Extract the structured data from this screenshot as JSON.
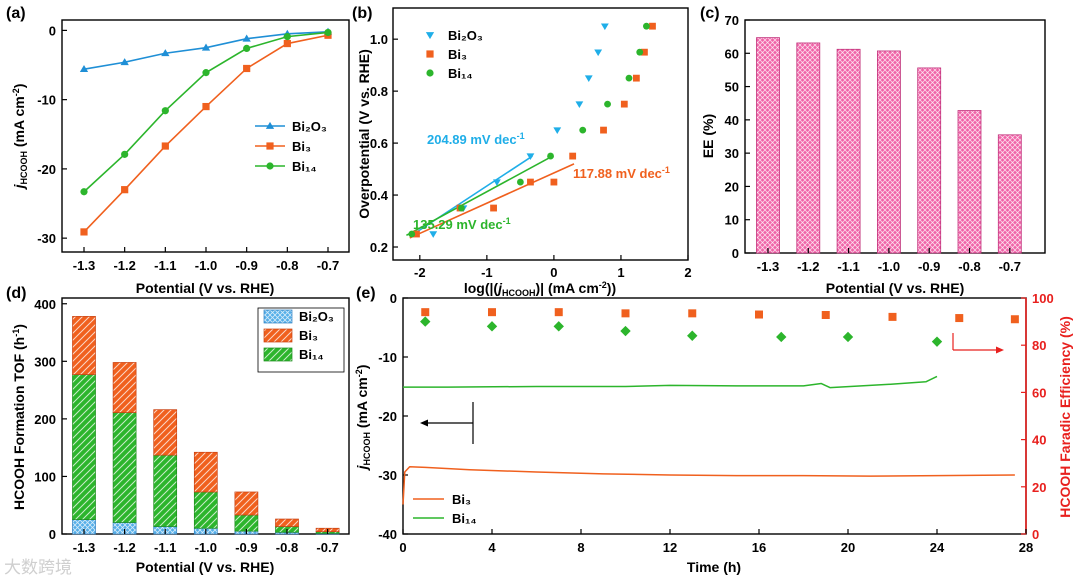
{
  "watermark": "大数跨境",
  "chart_data": [
    {
      "panel": "(a)",
      "type": "line",
      "x": [
        -1.3,
        -1.2,
        -1.1,
        -1.0,
        -0.9,
        -0.8,
        -0.7
      ],
      "xticks": [
        "-1.3",
        "-1.2",
        "-1.1",
        "-1.0",
        "-0.9",
        "-0.8",
        "-0.7"
      ],
      "yticks": [
        "0",
        "-10",
        "-20",
        "-30"
      ],
      "xlabel": "Potential (V vs. RHE)",
      "ylabel_main": "j",
      "ylabel_sub": "HCOOH",
      "ylabel_unit": " (mA cm",
      "ylabel_sup": "-2",
      "ylabel_end": ")",
      "ylim": [
        -32,
        1.5
      ],
      "legend": "right",
      "series": [
        {
          "name": "Bi₂O₃",
          "color": "#1f8fd6",
          "marker": "triangle",
          "values": [
            -5.6,
            -4.6,
            -3.3,
            -2.5,
            -1.2,
            -0.5,
            -0.2
          ]
        },
        {
          "name": "Bi₃",
          "color": "#f0601e",
          "marker": "square",
          "values": [
            -29.1,
            -23.0,
            -16.7,
            -11.0,
            -5.5,
            -1.9,
            -0.7
          ]
        },
        {
          "name": "Bi₁₄",
          "color": "#2cb52c",
          "marker": "circle",
          "values": [
            -23.3,
            -17.9,
            -11.6,
            -6.1,
            -2.6,
            -0.9,
            -0.3
          ]
        }
      ]
    },
    {
      "panel": "(b)",
      "type": "scatter",
      "xticks": [
        "-2",
        "-1",
        "0",
        "1",
        "2"
      ],
      "yticks": [
        "0.2",
        "0.4",
        "0.6",
        "0.8",
        "1.0"
      ],
      "xlim": [
        -2.4,
        2.0
      ],
      "ylim": [
        0.15,
        1.12
      ],
      "xlabel_pre": "log(|(",
      "xlabel_main": "j",
      "xlabel_sub": "HCOOH",
      "xlabel_post": ")| (mA cm",
      "xlabel_sup": "-2",
      "xlabel_end": "))",
      "ylabel": "Overpotential (V vs. RHE)",
      "legend": "top-left",
      "series": [
        {
          "name": "Bi₂O₃",
          "color": "#1faee8",
          "marker": "triangle-down",
          "x": [
            -1.8,
            -1.35,
            -0.85,
            -0.35,
            0.05,
            0.38,
            0.52,
            0.66,
            0.76
          ],
          "y": [
            0.25,
            0.35,
            0.45,
            0.55,
            0.65,
            0.75,
            0.85,
            0.95,
            1.05
          ]
        },
        {
          "name": "Bi₃",
          "color": "#f0601e",
          "marker": "square",
          "x": [
            -2.05,
            -1.4,
            -0.9,
            -0.35,
            0.0,
            0.28,
            0.74,
            1.05,
            1.23,
            1.35,
            1.47
          ],
          "y": [
            0.25,
            0.35,
            0.35,
            0.45,
            0.45,
            0.55,
            0.65,
            0.75,
            0.85,
            0.95,
            1.05
          ]
        },
        {
          "name": "Bi₁₄",
          "color": "#2cb52c",
          "marker": "circle",
          "x": [
            -2.12,
            -1.38,
            -0.5,
            -0.05,
            0.43,
            0.8,
            1.12,
            1.28,
            1.38
          ],
          "y": [
            0.25,
            0.35,
            0.45,
            0.55,
            0.65,
            0.75,
            0.85,
            0.95,
            1.05
          ]
        }
      ],
      "fits": [
        {
          "color": "#1faee8",
          "x": [
            -2.15,
            -0.32
          ],
          "y": [
            0.24,
            0.55
          ]
        },
        {
          "color": "#f0601e",
          "x": [
            -2.15,
            0.3
          ],
          "y": [
            0.235,
            0.52
          ]
        },
        {
          "color": "#2cb52c",
          "x": [
            -2.2,
            -0.02
          ],
          "y": [
            0.245,
            0.55
          ]
        }
      ],
      "annotations": [
        {
          "text": "204.89 mV dec",
          "sup": "-1",
          "color": "#1faee8"
        },
        {
          "text": "117.88 mV dec",
          "sup": "-1",
          "color": "#f0601e"
        },
        {
          "text": "135.29 mV dec",
          "sup": "-1",
          "color": "#2cb52c"
        }
      ]
    },
    {
      "panel": "(c)",
      "type": "bar",
      "categories": [
        "-1.3",
        "-1.2",
        "-1.1",
        "-1.0",
        "-0.9",
        "-0.8",
        "-0.7"
      ],
      "values": [
        64.7,
        63.1,
        61.2,
        60.7,
        55.6,
        42.8,
        35.5
      ],
      "color": "#f063a8",
      "yticks": [
        "0",
        "10",
        "20",
        "30",
        "40",
        "50",
        "60",
        "70"
      ],
      "ylim": [
        0,
        70
      ],
      "xlabel": "Potential (V vs. RHE)",
      "ylabel": "EE (%)"
    },
    {
      "panel": "(d)",
      "type": "bar",
      "stacked": true,
      "categories": [
        "-1.3",
        "-1.2",
        "-1.1",
        "-1.0",
        "-0.9",
        "-0.8",
        "-0.7"
      ],
      "yticks": [
        "0",
        "100",
        "200",
        "300",
        "400"
      ],
      "ylim": [
        0,
        410
      ],
      "xlabel": "Potential (V vs. RHE)",
      "ylabel_pre": "HCOOH Formation TOF (h",
      "ylabel_sup": "-1",
      "ylabel_end": ")",
      "legend": "top-right",
      "series": [
        {
          "name": "Bi₂O₃",
          "color": "#55aee8",
          "values": [
            25,
            20,
            13,
            10,
            5,
            3,
            1
          ]
        },
        {
          "name": "Bi₃",
          "color": "#f0601e",
          "values": [
            101,
            87,
            79,
            69,
            40,
            13,
            6
          ]
        },
        {
          "name": "Bi₁₄",
          "color": "#2cb52c",
          "values": [
            252,
            191,
            124,
            63,
            28,
            10,
            3
          ]
        }
      ]
    },
    {
      "panel": "(e)",
      "type": "line",
      "xticks": [
        "0",
        "4",
        "8",
        "12",
        "16",
        "20",
        "24",
        "28"
      ],
      "xlim": [
        0,
        28
      ],
      "yticks_left": [
        "0",
        "-10",
        "-20",
        "-30",
        "-40"
      ],
      "ylim_left": [
        -40,
        0
      ],
      "yticks_right": [
        "0",
        "20",
        "40",
        "60",
        "80",
        "100"
      ],
      "ylim_right": [
        0,
        100
      ],
      "xlabel": "Time (h)",
      "ylabel_left_main": "j",
      "ylabel_left_sub": "HCOOH",
      "ylabel_left_unit": " (mA cm",
      "ylabel_left_sup": "-2",
      "ylabel_left_end": ")",
      "ylabel_right": "HCOOH Faradic Efficiency (%)",
      "right_axis_color": "#e8201e",
      "legend": "bottom-left",
      "series": [
        {
          "name": "Bi₃",
          "color": "#f0601e",
          "x": [
            0,
            0.08,
            0.3,
            1,
            3,
            6,
            9,
            12,
            15,
            18,
            21,
            24,
            27.5
          ],
          "y": [
            -35,
            -29.5,
            -28.6,
            -28.7,
            -29.1,
            -29.5,
            -29.8,
            -30.0,
            -30.1,
            -30.1,
            -30.2,
            -30.1,
            -30.0
          ]
        },
        {
          "name": "Bi₁₄",
          "color": "#2cb52c",
          "x": [
            0,
            2,
            6,
            10,
            12,
            15,
            18,
            18.8,
            19.2,
            22,
            23.5,
            24
          ],
          "y": [
            -15.1,
            -15.1,
            -15.0,
            -15.0,
            -14.8,
            -14.9,
            -14.9,
            -14.5,
            -15.2,
            -14.6,
            -14.2,
            -13.3
          ]
        }
      ],
      "fe_series": [
        {
          "name": "Bi₃ FE",
          "color": "#f0601e",
          "marker": "square",
          "x": [
            1,
            4,
            7,
            10,
            13,
            16,
            19,
            22,
            25,
            27.5
          ],
          "y": [
            94.0,
            94.0,
            94.0,
            93.5,
            93.5,
            93.0,
            92.8,
            92.0,
            91.5,
            91.0
          ]
        },
        {
          "name": "Bi₁₄ FE",
          "color": "#2cb52c",
          "marker": "diamond",
          "x": [
            1,
            4,
            7,
            10,
            13,
            17,
            20,
            24
          ],
          "y": [
            90.0,
            88.0,
            88.0,
            86.0,
            84.0,
            83.5,
            83.5,
            81.5
          ]
        }
      ]
    }
  ]
}
